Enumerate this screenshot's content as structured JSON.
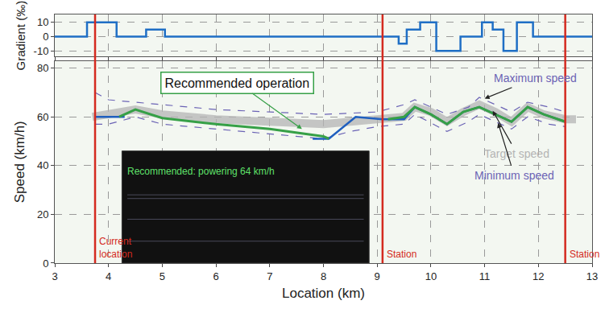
{
  "chart_data": [
    {
      "type": "line",
      "y_label": "Gradient (‰)",
      "xlim": [
        3,
        13
      ],
      "xticks": [
        3,
        4,
        5,
        6,
        7,
        8,
        9,
        10,
        11,
        12,
        13
      ],
      "ylim": [
        -14,
        15.5
      ],
      "yticks": [
        -10,
        0,
        10
      ],
      "grid": true,
      "tick_labels": "y",
      "series": [
        {
          "color": "#1f6fc5",
          "line_style": "step",
          "x": [
            3,
            3.6,
            4.15,
            4.7,
            5.05,
            9.4,
            9.55,
            9.8,
            10.1,
            10.55,
            10.95,
            11.15,
            11.35,
            11.6,
            11.9,
            13
          ],
          "values": [
            0,
            10,
            0,
            5,
            0,
            -5,
            5,
            10,
            -10,
            0,
            10,
            5,
            -10,
            10,
            0,
            0
          ]
        }
      ]
    },
    {
      "type": "line",
      "x_label": "Location (km)",
      "y_label": "Speed (km/h)",
      "xlim": [
        3,
        13
      ],
      "xticks": [
        3,
        4,
        5,
        6,
        7,
        8,
        9,
        10,
        11,
        12,
        13
      ],
      "ylim": [
        0,
        83
      ],
      "yticks": [
        0,
        20,
        40,
        60,
        80
      ],
      "grid": true,
      "series": [
        {
          "name": "Target speed",
          "color": "#b4b4b4",
          "line_style": "solid",
          "x": [
            3.7,
            4.5,
            5,
            6,
            7,
            8,
            8.5,
            9,
            9.5,
            9.7,
            10,
            10.3,
            10.6,
            10.9,
            11.2,
            11.5,
            11.8,
            12.1,
            12.5,
            12.7
          ],
          "values": [
            60,
            63,
            61,
            59,
            58,
            57,
            58,
            59,
            60,
            64,
            62,
            58,
            62,
            65,
            62,
            58,
            64,
            61,
            59,
            59
          ]
        },
        {
          "name": "Maximum speed",
          "color": "#6b63b5",
          "line_style": "dashed",
          "x": [
            3.75,
            4,
            4.5,
            5,
            6,
            7,
            8,
            9,
            9.5,
            9.7,
            10.3,
            10.7,
            10.9,
            11.2,
            11.5,
            11.8,
            12.2,
            12.5
          ],
          "values": [
            70,
            67,
            66,
            65,
            63,
            62,
            61,
            62,
            65,
            67,
            61,
            64,
            68,
            65,
            62,
            66,
            64,
            62
          ]
        },
        {
          "name": "Minimum speed",
          "color": "#6b63b5",
          "line_style": "dashed",
          "x": [
            3.75,
            4,
            4.5,
            5,
            6,
            7,
            8,
            8.5,
            9,
            9.5,
            9.7,
            10.3,
            10.7,
            10.9,
            11.2,
            11.5,
            11.8,
            12.2,
            12.5
          ],
          "values": [
            57,
            57,
            60,
            57,
            55,
            53,
            51,
            54,
            56,
            57,
            61,
            54,
            58,
            61,
            58,
            55,
            60,
            57,
            56
          ]
        },
        {
          "color": "#1f5fbf",
          "line_style": "solid",
          "x": [
            3.75,
            4.3,
            4.35,
            7.8,
            8.1,
            8.6,
            9.1,
            9.5,
            9.7,
            10,
            10.3,
            10.6,
            10.9,
            11.2,
            11.5,
            11.8,
            12.1,
            12.5
          ],
          "values": [
            60,
            60,
            null,
            51,
            51,
            60,
            59,
            59,
            64,
            61,
            57,
            62,
            64,
            61,
            58,
            64,
            61,
            58
          ]
        },
        {
          "name": "Recommended operation",
          "color": "#36a047",
          "line_style": "solid",
          "x": [
            4.2,
            4.5,
            5,
            6,
            7,
            8,
            8.1,
            8.5,
            9.2,
            9.5,
            9.7,
            10,
            10.3,
            10.6,
            10.9,
            11.2,
            11.5,
            11.8,
            12.1,
            12.5
          ],
          "values": [
            60,
            63,
            59.5,
            57,
            55,
            52,
            51,
            null,
            59,
            60,
            64,
            61,
            57,
            62,
            64,
            61,
            58,
            64,
            61,
            58
          ]
        }
      ],
      "vertical_lines": [
        {
          "x": 3.75,
          "label": "Current\nlocation"
        },
        {
          "x": 9.1,
          "label": "Station"
        },
        {
          "x": 12.5,
          "label": "Station"
        }
      ],
      "inset_text": "Recommended: powering 64 km/h"
    }
  ]
}
